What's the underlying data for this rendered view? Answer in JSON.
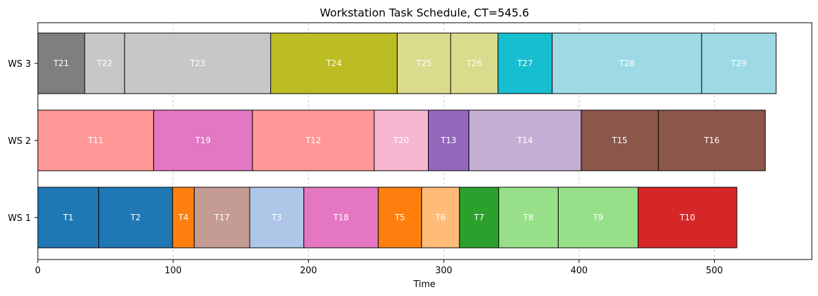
{
  "chart_data": {
    "type": "bar",
    "orientation": "horizontal-gantt",
    "title": "Workstation Task Schedule, CT=545.6",
    "xlabel": "Time",
    "ylabel": "",
    "xlim": [
      0,
      572
    ],
    "xticks": [
      0,
      100,
      200,
      300,
      400,
      500
    ],
    "grid": "x, dashed",
    "legend": "none",
    "rows": [
      {
        "label": "WS 1",
        "tasks": [
          {
            "name": "T1",
            "start": 0,
            "end": 45,
            "color": "#1f77b4"
          },
          {
            "name": "T2",
            "start": 45,
            "end": 99.6,
            "color": "#1f77b4"
          },
          {
            "name": "T4",
            "start": 99.6,
            "end": 115.6,
            "color": "#ff7f0e"
          },
          {
            "name": "T17",
            "start": 115.6,
            "end": 156.6,
            "color": "#c49c94"
          },
          {
            "name": "T3",
            "start": 156.6,
            "end": 196.6,
            "color": "#aec7e8"
          },
          {
            "name": "T18",
            "start": 196.6,
            "end": 251.6,
            "color": "#e377c2"
          },
          {
            "name": "T5",
            "start": 251.6,
            "end": 283.6,
            "color": "#ff7f0e"
          },
          {
            "name": "T6",
            "start": 283.6,
            "end": 311.6,
            "color": "#ffbb78"
          },
          {
            "name": "T7",
            "start": 311.6,
            "end": 340.6,
            "color": "#2ca02c"
          },
          {
            "name": "T8",
            "start": 340.6,
            "end": 384.6,
            "color": "#98df8a"
          },
          {
            "name": "T9",
            "start": 384.6,
            "end": 443.6,
            "color": "#98df8a"
          },
          {
            "name": "T10",
            "start": 443.6,
            "end": 516.6,
            "color": "#d62728"
          }
        ]
      },
      {
        "label": "WS 2",
        "tasks": [
          {
            "name": "T11",
            "start": 0,
            "end": 85.6,
            "color": "#ff9896"
          },
          {
            "name": "T19",
            "start": 85.6,
            "end": 158.6,
            "color": "#e377c2"
          },
          {
            "name": "T12",
            "start": 158.6,
            "end": 248.6,
            "color": "#ff9896"
          },
          {
            "name": "T20",
            "start": 248.6,
            "end": 288.6,
            "color": "#f7b6d2"
          },
          {
            "name": "T13",
            "start": 288.6,
            "end": 318.6,
            "color": "#9467bd"
          },
          {
            "name": "T14",
            "start": 318.6,
            "end": 401.6,
            "color": "#c5b0d5"
          },
          {
            "name": "T15",
            "start": 401.6,
            "end": 458.6,
            "color": "#8c564b"
          },
          {
            "name": "T16",
            "start": 458.6,
            "end": 537.6,
            "color": "#8c564b"
          }
        ]
      },
      {
        "label": "WS 3",
        "tasks": [
          {
            "name": "T21",
            "start": 0,
            "end": 34.6,
            "color": "#7f7f7f"
          },
          {
            "name": "T22",
            "start": 34.6,
            "end": 64.1,
            "color": "#c7c7c7"
          },
          {
            "name": "T23",
            "start": 64.1,
            "end": 172.1,
            "color": "#c7c7c7"
          },
          {
            "name": "T24",
            "start": 172.1,
            "end": 265.6,
            "color": "#bcbd22"
          },
          {
            "name": "T25",
            "start": 265.6,
            "end": 305.1,
            "color": "#dbdb8d"
          },
          {
            "name": "T26",
            "start": 305.1,
            "end": 340.1,
            "color": "#dbdb8d"
          },
          {
            "name": "T27",
            "start": 340.1,
            "end": 380.1,
            "color": "#17becf"
          },
          {
            "name": "T28",
            "start": 380.1,
            "end": 490.6,
            "color": "#9edae5"
          },
          {
            "name": "T29",
            "start": 490.6,
            "end": 545.6,
            "color": "#9edae5"
          }
        ]
      }
    ]
  }
}
